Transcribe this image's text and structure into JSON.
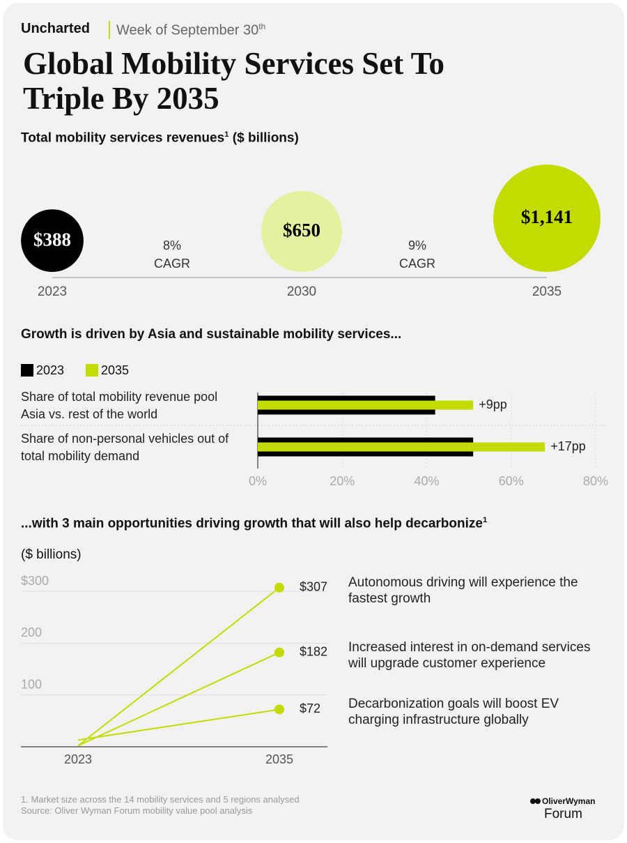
{
  "header": {
    "brand": "Uncharted",
    "week": "Week of September 30",
    "week_suffix": "th",
    "title": "Global Mobility Services Set To Triple By 2035"
  },
  "chart_data": [
    {
      "type": "bubble",
      "title": "Total mobility services revenues",
      "title_note": "1",
      "unit": "($ billions)",
      "categories": [
        "2023",
        "2030",
        "2035"
      ],
      "values": [
        388,
        650,
        1141
      ],
      "value_labels": [
        "$388",
        "$650",
        "$1,141"
      ],
      "colors": [
        "#000000",
        "#e6f1a0",
        "#c3dc00"
      ],
      "cagr_values": [
        8,
        9
      ],
      "cagr_value_labels": [
        "8%",
        "9%"
      ],
      "cagr_label": "CAGR"
    },
    {
      "type": "hbar",
      "title": "Growth is driven by Asia and sustainable mobility services...",
      "categories": [
        "Share of total mobility revenue pool Asia vs. rest of the world",
        "Share of non-personal vehicles out of total mobility demand"
      ],
      "series": [
        {
          "name": "2023",
          "color": "#000000",
          "values": [
            42,
            51
          ]
        },
        {
          "name": "2035",
          "color": "#c3dc00",
          "values": [
            51,
            68
          ]
        }
      ],
      "deltas": [
        9,
        17
      ],
      "delta_labels": [
        "+9pp",
        "+17pp"
      ],
      "xlim": [
        0,
        80
      ],
      "xticks": [
        {
          "value": 0,
          "label": "0%"
        },
        {
          "value": 20,
          "label": "20%"
        },
        {
          "value": 40,
          "label": "40%"
        },
        {
          "value": 60,
          "label": "60%"
        },
        {
          "value": 80,
          "label": "80%"
        }
      ],
      "grid": true
    },
    {
      "type": "line",
      "title": "...with 3 main opportunities driving growth that will also help decarbonize",
      "title_note": "1",
      "y_label": "($ billions)",
      "categories": [
        "2023",
        "2035"
      ],
      "series": [
        {
          "name": "Autonomous driving will experience the fastest growth",
          "color": "#c3dc00",
          "values": [
            2,
            307
          ],
          "value_labels": [
            null,
            "$307"
          ]
        },
        {
          "name": "Increased interest in on-demand services will upgrade customer experience",
          "color": "#c3dc00",
          "values": [
            2,
            182
          ],
          "value_labels": [
            null,
            "$182"
          ]
        },
        {
          "name": "Decarbonization goals will boost EV charging infrastructure globally",
          "color": "#c3dc00",
          "values": [
            13,
            72
          ],
          "value_labels": [
            null,
            "$72"
          ]
        }
      ],
      "ylim": [
        0,
        300
      ],
      "yticks": [
        {
          "value": 100,
          "label": "100"
        },
        {
          "value": 200,
          "label": "200"
        },
        {
          "value": 300,
          "label": "$300"
        }
      ],
      "grid": true
    }
  ],
  "footer": {
    "notes": [
      "1. Market size across the 14 mobility services and 5 regions analysed",
      "Source: Oliver Wyman Forum mobility value pool analysis"
    ],
    "logo_top": "OliverWyman",
    "logo_bottom": "Forum"
  }
}
